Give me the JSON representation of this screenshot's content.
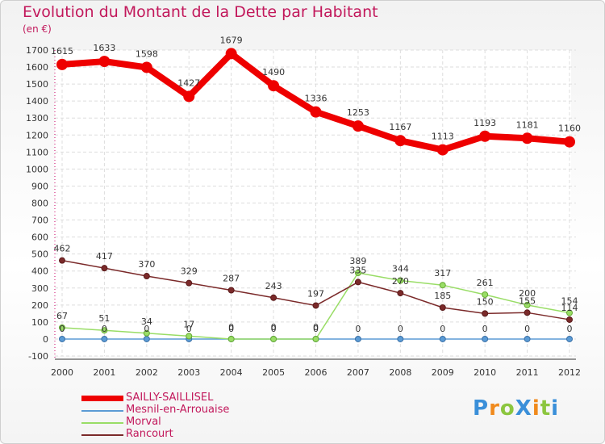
{
  "title": "Evolution du Montant de la Dette par Habitant",
  "subtitle": "(en €)",
  "logo": "ProXiti",
  "chart_data": {
    "type": "line",
    "title": "Evolution du Montant de la Dette par Habitant",
    "subtitle": "(en €)",
    "xlabel": "",
    "ylabel": "",
    "x": [
      "2000",
      "2001",
      "2002",
      "2003",
      "2004",
      "2005",
      "2006",
      "2007",
      "2008",
      "2009",
      "2010",
      "2011",
      "2012"
    ],
    "ylim": [
      -100,
      1700
    ],
    "yticks": [
      -100,
      0,
      100,
      200,
      300,
      400,
      500,
      600,
      700,
      800,
      900,
      1000,
      1100,
      1200,
      1300,
      1400,
      1500,
      1600,
      1700
    ],
    "grid": true,
    "legend_position": "bottom-left",
    "series": [
      {
        "name": "SAILLY-SAILLISEL",
        "color": "#ee0000",
        "values": [
          1615,
          1633,
          1598,
          1427,
          1679,
          1490,
          1336,
          1253,
          1167,
          1113,
          1193,
          1181,
          1160
        ],
        "labels": [
          "1615",
          "1633",
          "1598",
          "1427",
          "1679",
          "1490",
          "1336",
          "1253",
          "1167",
          "1113",
          "1193",
          "1181",
          "1160"
        ]
      },
      {
        "name": "Mesnil-en-Arrouaise",
        "color": "#5b9bd5",
        "values": [
          0,
          0,
          0,
          0,
          0,
          0,
          0,
          0,
          0,
          0,
          0,
          0,
          0
        ],
        "labels": [
          "0",
          "0",
          "0",
          "0",
          "0",
          "0",
          "0",
          "0",
          "0",
          "0",
          "0",
          "0",
          "0"
        ]
      },
      {
        "name": "Morval",
        "color": "#99dd66",
        "values": [
          67,
          51,
          34,
          17,
          0,
          0,
          0,
          389,
          344,
          317,
          261,
          200,
          154
        ],
        "labels": [
          "67",
          "51",
          "34",
          "17",
          "0",
          "0",
          "0",
          "389",
          "344",
          "317",
          "261",
          "200",
          "154"
        ]
      },
      {
        "name": "Rancourt",
        "color": "#7b2a2a",
        "values": [
          462,
          417,
          370,
          329,
          287,
          243,
          197,
          335,
          270,
          185,
          150,
          155,
          114
        ],
        "labels": [
          "462",
          "417",
          "370",
          "329",
          "287",
          "243",
          "197",
          "335",
          "270",
          "185",
          "150",
          "155",
          "114"
        ]
      }
    ]
  }
}
